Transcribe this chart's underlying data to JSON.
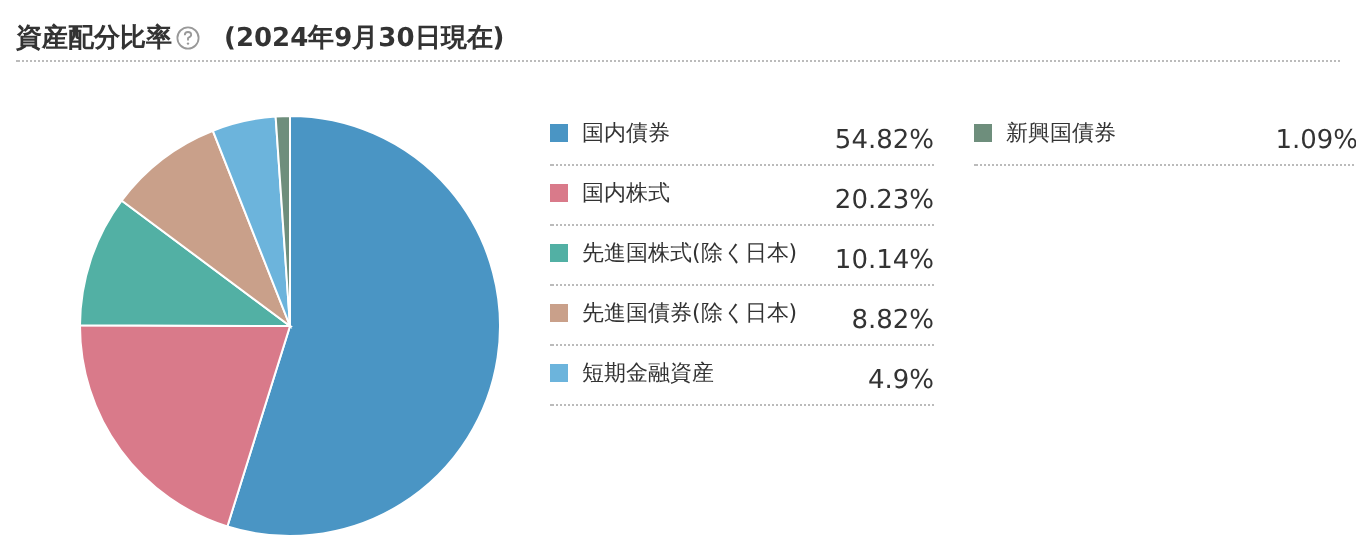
{
  "chart_data": {
    "type": "pie",
    "title": "資産配分比率",
    "subtitle": "(2024年9月30日現在)",
    "categories": [
      "国内債券",
      "国内株式",
      "先進国株式(除く日本)",
      "先進国債券(除く日本)",
      "短期金融資産",
      "新興国債券"
    ],
    "values": [
      54.82,
      20.23,
      10.14,
      8.82,
      4.9,
      1.09
    ],
    "colors": [
      "#4a95c4",
      "#d97a8a",
      "#52b0a4",
      "#c9a08a",
      "#6cb4dc",
      "#6e8e7c"
    ],
    "value_labels": [
      "54.82%",
      "20.23%",
      "10.14%",
      "8.82%",
      "4.9%",
      "1.09%"
    ],
    "legend": "right"
  }
}
